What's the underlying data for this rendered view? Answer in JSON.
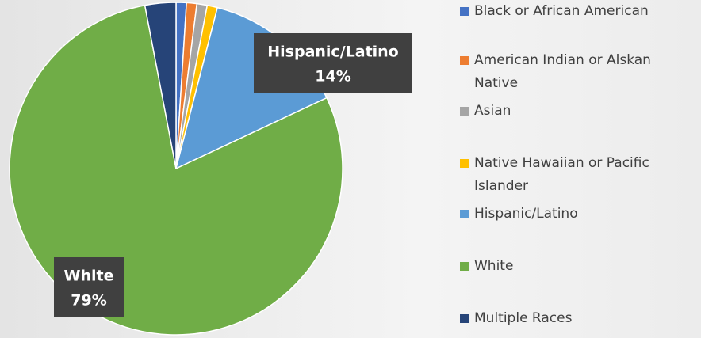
{
  "chart_data": {
    "type": "pie",
    "categories": [
      "Black or African American",
      "American Indian or Alskan Native",
      "Asian",
      "Native Hawaiian or Pacific Islander",
      "Hispanic/Latino",
      "White",
      "Multiple Races"
    ],
    "values": [
      1,
      1,
      1,
      1,
      14,
      79,
      3
    ],
    "value_labels": [
      null,
      null,
      null,
      null,
      "14%",
      "79%",
      null
    ],
    "colors": [
      "#4472c4",
      "#ed7d31",
      "#a5a5a5",
      "#ffc000",
      "#5b9bd5",
      "#70ad47",
      "#264478"
    ],
    "legend": "right"
  }
}
